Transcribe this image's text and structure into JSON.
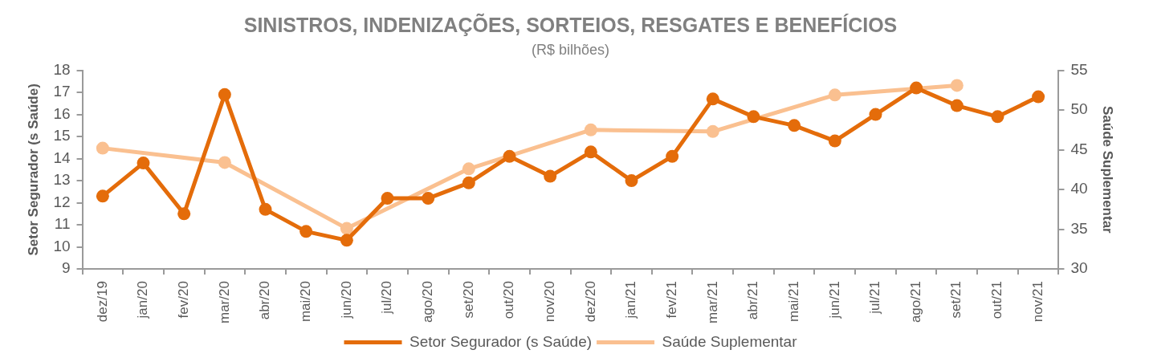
{
  "chart_data": {
    "type": "line",
    "title": "SINISTROS, INDENIZAÇÕES, SORTEIOS, RESGATES E BENEFÍCIOS",
    "subtitle": "(R$ bilhões)",
    "ylabel": "Setor Segurador (s Saúde)",
    "y2label": "Saúde Suplementar",
    "categories": [
      "dez/19",
      "jan/20",
      "fev/20",
      "mar/20",
      "abr/20",
      "mai/20",
      "jun/20",
      "jul/20",
      "ago/20",
      "set/20",
      "out/20",
      "nov/20",
      "dez/20",
      "jan/21",
      "fev/21",
      "mar/21",
      "abr/21",
      "mai/21",
      "jun/21",
      "jul/21",
      "ago/21",
      "set/21",
      "out/21",
      "nov/21"
    ],
    "series": [
      {
        "name": "Setor Segurador (s Saúde)",
        "color": "#e46c0a",
        "values": [
          12.3,
          13.8,
          11.5,
          16.9,
          11.7,
          10.7,
          10.3,
          12.2,
          12.2,
          12.9,
          14.1,
          13.2,
          14.3,
          13.0,
          14.1,
          16.7,
          15.9,
          15.5,
          14.8,
          16.0,
          17.2,
          16.4,
          15.9,
          16.8
        ]
      },
      {
        "name": "Saúde Suplementar",
        "color": "#fac090",
        "axis": "y2",
        "values": [
          45.2,
          null,
          null,
          43.4,
          null,
          null,
          35.1,
          null,
          null,
          42.6,
          null,
          null,
          47.5,
          null,
          null,
          47.3,
          null,
          null,
          51.9,
          null,
          null,
          53.1,
          null,
          null
        ]
      }
    ],
    "ylim": [
      9,
      18
    ],
    "yticks": [
      9,
      10,
      11,
      12,
      13,
      14,
      15,
      16,
      17,
      18
    ],
    "y2lim": [
      30,
      55
    ],
    "y2ticks": [
      30,
      35,
      40,
      45,
      50,
      55
    ],
    "grid": false,
    "legend": "bottom",
    "marker": "circle",
    "line_style": "solid"
  }
}
